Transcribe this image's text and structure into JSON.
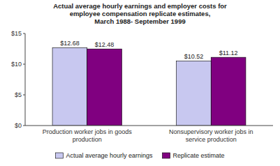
{
  "chart_data": {
    "type": "bar",
    "title": "Actual average hourly earnings and employer costs for\nemployee compensation replicate estimates,\nMarch 1988- September 1999",
    "categories": [
      "Production worker jobs in goods\nproduction",
      "Nonsupervisory worker jobs in\nservice production"
    ],
    "series": [
      {
        "name": "Actual average hourly earnings",
        "color": "#c8c8f0",
        "values": [
          12.68,
          10.52
        ],
        "value_labels": [
          "$12.68",
          "$10.52"
        ]
      },
      {
        "name": "Replicate estimate",
        "color": "#800080",
        "values": [
          12.48,
          11.12
        ],
        "value_labels": [
          "$12.48",
          "$11.12"
        ]
      }
    ],
    "ylim": [
      0,
      15
    ],
    "yticks": [
      {
        "value": 0,
        "label": "$0"
      },
      {
        "value": 5,
        "label": "$5"
      },
      {
        "value": 10,
        "label": "$10"
      },
      {
        "value": 15,
        "label": "$15"
      }
    ],
    "data_labels": true,
    "grid": false,
    "legend": "bottom"
  }
}
